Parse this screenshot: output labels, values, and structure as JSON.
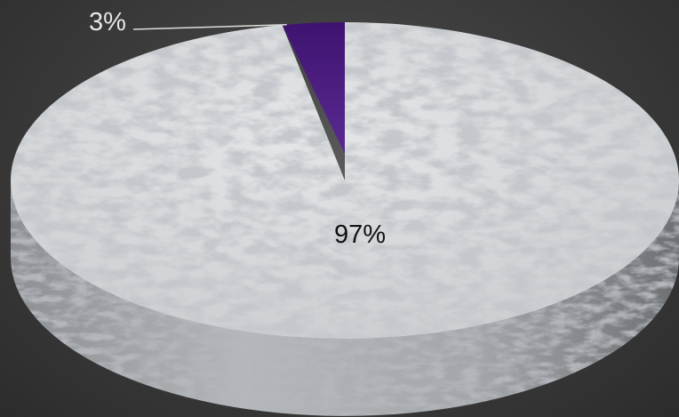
{
  "chart_data": {
    "type": "pie",
    "style": "3d",
    "title": "",
    "slices": [
      {
        "label": "97%",
        "value": 97,
        "color": "#d9dcde"
      },
      {
        "label": "3%",
        "value": 3,
        "color": "#4a1a7e"
      }
    ],
    "label_colors": {
      "inside": "#111111",
      "outside": "#e6e6e6"
    },
    "leader_line_color": "#dddddd"
  }
}
